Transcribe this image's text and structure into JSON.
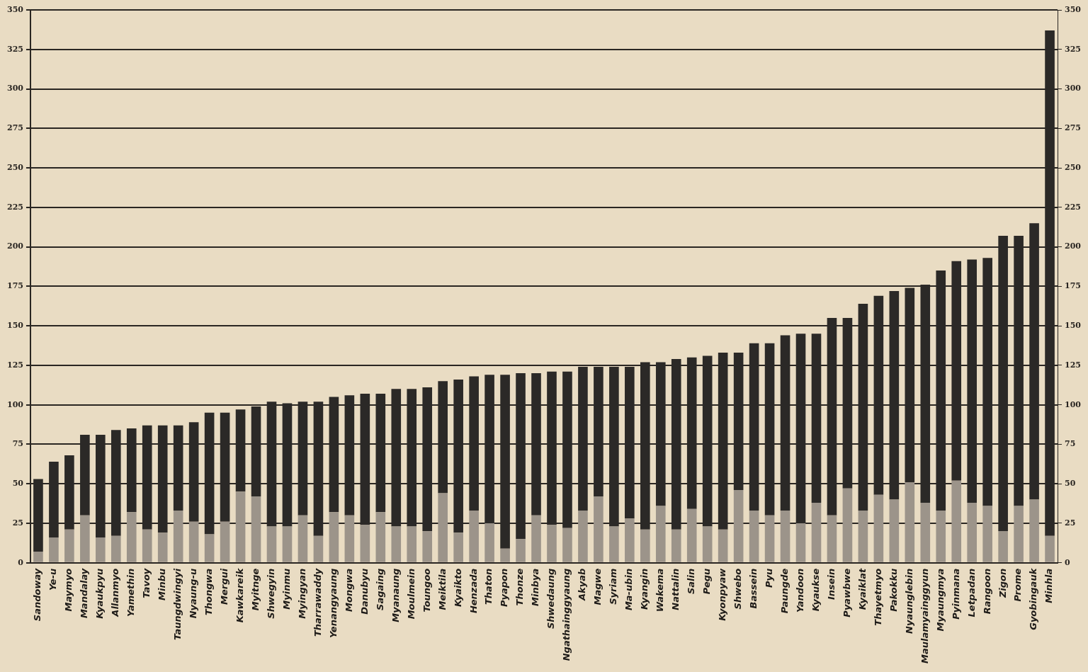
{
  "chart_data": {
    "type": "bar",
    "stacked": true,
    "categories": [
      "Sandoway",
      "Ye-u",
      "Maymyo",
      "Mandalay",
      "Kyaukpyu",
      "Allanmyo",
      "Yamethin",
      "Tavoy",
      "Minbu",
      "Taungdwingyi",
      "Nyaung-u",
      "Thongwa",
      "Mergui",
      "Kawkareik",
      "Myitnge",
      "Shwegyin",
      "Myinmu",
      "Myingyan",
      "Tharrawaddy",
      "Yenangyaung",
      "Mongwa",
      "Danubyu",
      "Sagaing",
      "Myanaung",
      "Moulmein",
      "Toungoo",
      "Meiktila",
      "Kyaikto",
      "Henzada",
      "Thaton",
      "Pyapon",
      "Thonze",
      "Minbya",
      "Shwedaung",
      "Ngathainggyaung",
      "Akyab",
      "Magwe",
      "Syriam",
      "Ma-ubin",
      "Kyangin",
      "Wakema",
      "Nattalin",
      "Salin",
      "Pegu",
      "Kyonpyaw",
      "Shwebo",
      "Bassein",
      "Pyu",
      "Paungde",
      "Yandoon",
      "Kyaukse",
      "Insein",
      "Pyawbwe",
      "Kyaiklat",
      "Thayetmyo",
      "Pakokku",
      "Nyaunglebin",
      "Maulamyainggyun",
      "Myaungmya",
      "Pyinmana",
      "Letpadan",
      "Rangoon",
      "Zigon",
      "Prome",
      "Gyobingauk",
      "Minhla"
    ],
    "series": [
      {
        "color": "#9c948a",
        "values": [
          7,
          16,
          21,
          30,
          16,
          17,
          32,
          21,
          19,
          33,
          26,
          18,
          26,
          45,
          42,
          23,
          23,
          30,
          17,
          32,
          30,
          24,
          32,
          23,
          23,
          20,
          44,
          19,
          33,
          25,
          9,
          15,
          30,
          24,
          22,
          33,
          42,
          23,
          28,
          21,
          36,
          21,
          34,
          23,
          21,
          46,
          33,
          30,
          33,
          25,
          38,
          30,
          47,
          33,
          43,
          40,
          51,
          38,
          33,
          52,
          38,
          36,
          20,
          36,
          40,
          17
        ]
      },
      {
        "color": "#2b2927",
        "values": [
          46,
          48,
          47,
          51,
          65,
          67,
          53,
          66,
          68,
          54,
          63,
          77,
          69,
          52,
          57,
          79,
          78,
          72,
          85,
          73,
          76,
          83,
          75,
          87,
          87,
          91,
          71,
          97,
          85,
          94,
          110,
          105,
          90,
          97,
          99,
          91,
          82,
          101,
          96,
          106,
          91,
          108,
          96,
          108,
          112,
          87,
          106,
          109,
          111,
          120,
          107,
          125,
          108,
          131,
          126,
          132,
          123,
          138,
          152,
          139,
          154,
          157,
          187,
          171,
          175,
          320
        ]
      }
    ],
    "ylim": [
      0,
      350
    ],
    "yticks": [
      0,
      25,
      50,
      75,
      100,
      125,
      150,
      175,
      200,
      225,
      250,
      275,
      300,
      325,
      350
    ],
    "y2lim": [
      0,
      350
    ],
    "y2ticks": [
      0,
      25,
      50,
      75,
      100,
      125,
      150,
      175,
      200,
      225,
      250,
      275,
      300,
      325,
      350
    ],
    "grid": "y",
    "legend": false
  }
}
